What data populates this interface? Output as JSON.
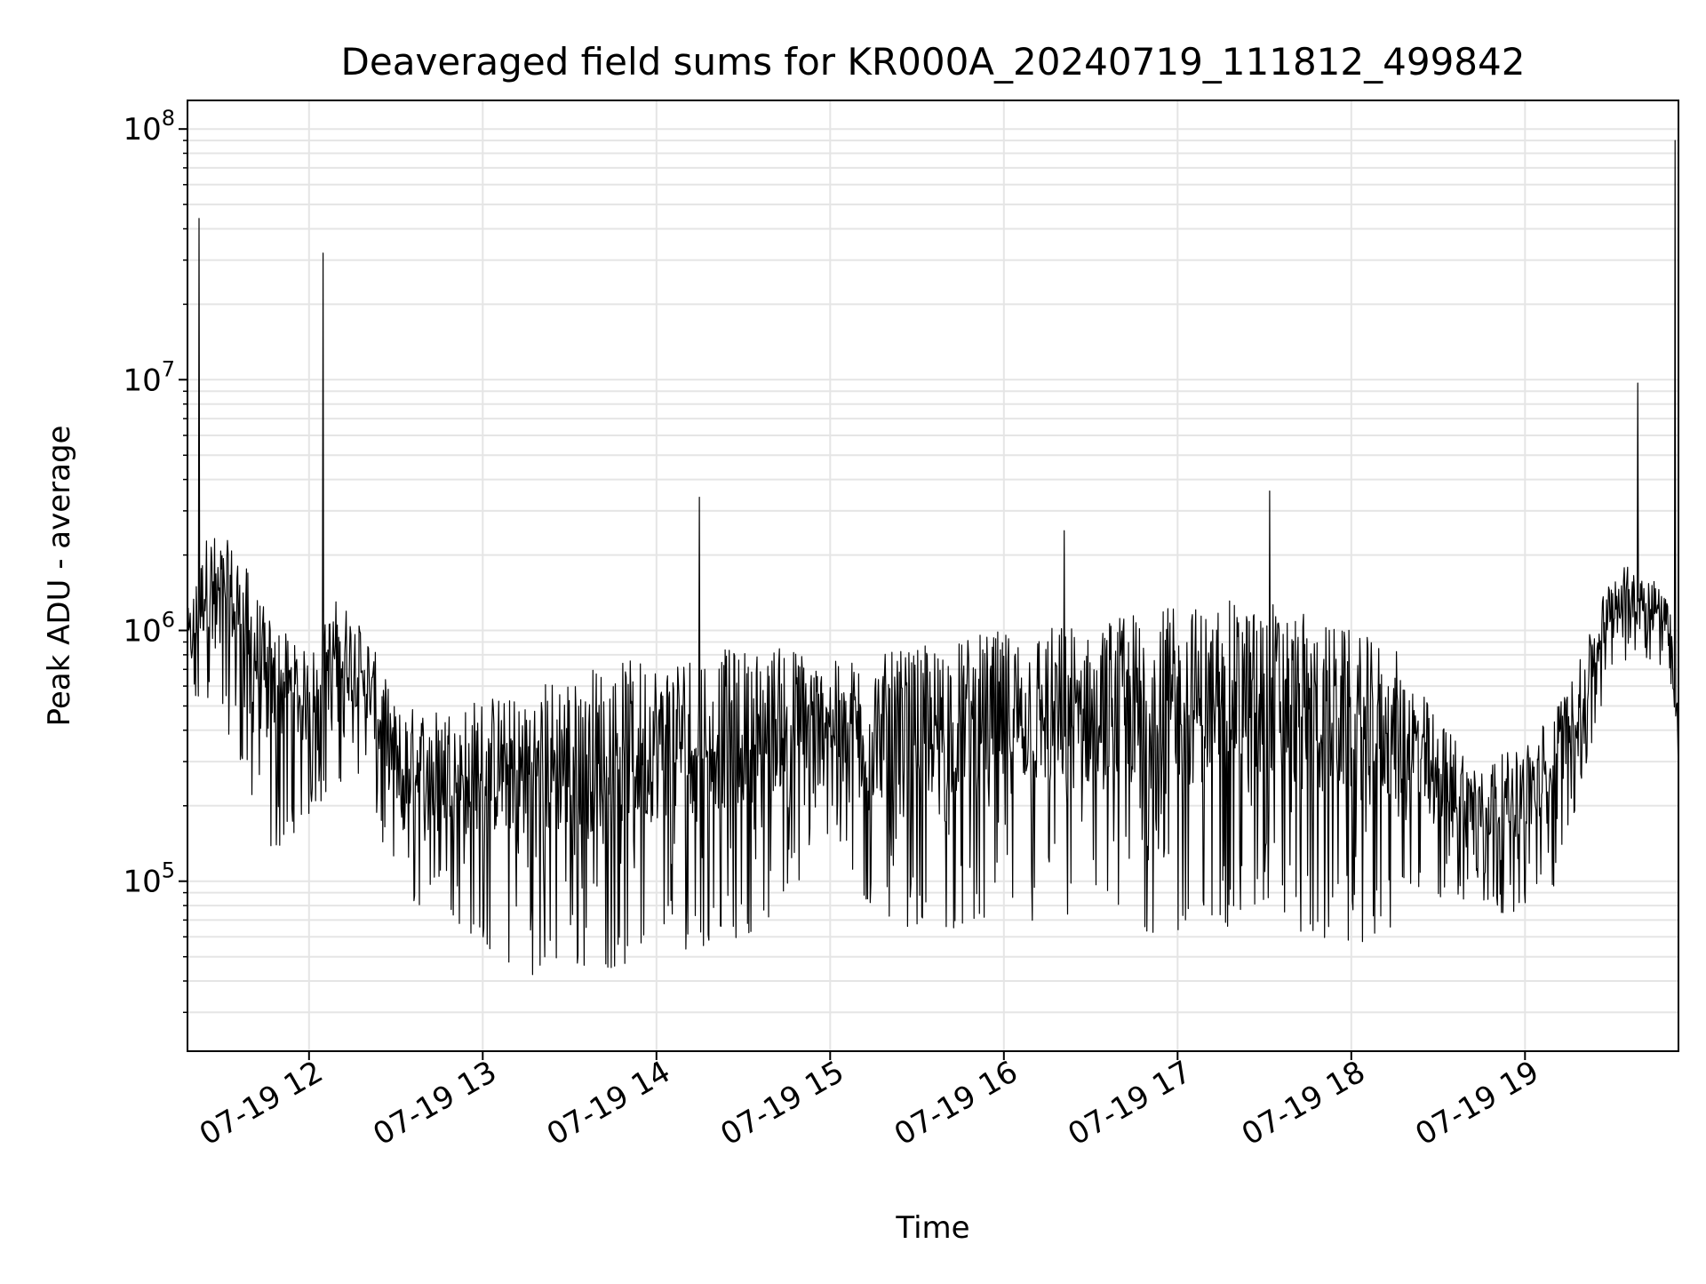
{
  "chart_data": {
    "type": "line",
    "title": "Deaveraged field sums for KR000A_20240719_111812_499842",
    "xlabel": "Time",
    "ylabel": "Peak ADU - average",
    "x_unit": "hour",
    "x_range": [
      "2024-07-19 11:18",
      "2024-07-19 19:53"
    ],
    "x_ticks": [
      {
        "value": "2024-07-19 12:00",
        "label": "07-19 12"
      },
      {
        "value": "2024-07-19 13:00",
        "label": "07-19 13"
      },
      {
        "value": "2024-07-19 14:00",
        "label": "07-19 14"
      },
      {
        "value": "2024-07-19 15:00",
        "label": "07-19 15"
      },
      {
        "value": "2024-07-19 16:00",
        "label": "07-19 16"
      },
      {
        "value": "2024-07-19 17:00",
        "label": "07-19 17"
      },
      {
        "value": "2024-07-19 18:00",
        "label": "07-19 18"
      },
      {
        "value": "2024-07-19 19:00",
        "label": "07-19 19"
      }
    ],
    "y_scale": "log",
    "y_range": [
      21000,
      130000000
    ],
    "y_ticks": [
      {
        "value": 100000,
        "base": "10",
        "exp": "5"
      },
      {
        "value": 1000000,
        "base": "10",
        "exp": "6"
      },
      {
        "value": 10000000,
        "base": "10",
        "exp": "7"
      },
      {
        "value": 100000000,
        "base": "10",
        "exp": "8"
      }
    ],
    "grid": true,
    "line_color": "#000000",
    "grid_color": "#e5e5e5",
    "series": [
      {
        "envelope": [
          {
            "x": "2024-07-19 11:18",
            "high": 1200000,
            "low": 350000
          },
          {
            "x": "2024-07-19 11:25",
            "high": 2500000,
            "low": 500000
          },
          {
            "x": "2024-07-19 11:35",
            "high": 2200000,
            "low": 350000
          },
          {
            "x": "2024-07-19 11:45",
            "high": 1200000,
            "low": 120000
          },
          {
            "x": "2024-07-19 12:00",
            "high": 800000,
            "low": 180000
          },
          {
            "x": "2024-07-19 12:10",
            "high": 1400000,
            "low": 250000
          },
          {
            "x": "2024-07-19 12:20",
            "high": 1000000,
            "low": 250000
          },
          {
            "x": "2024-07-19 12:30",
            "high": 500000,
            "low": 80000
          },
          {
            "x": "2024-07-19 12:45",
            "high": 500000,
            "low": 80000
          },
          {
            "x": "2024-07-19 13:00",
            "high": 550000,
            "low": 55000
          },
          {
            "x": "2024-07-19 13:15",
            "high": 600000,
            "low": 42000
          },
          {
            "x": "2024-07-19 13:30",
            "high": 700000,
            "low": 45000
          },
          {
            "x": "2024-07-19 13:45",
            "high": 750000,
            "low": 45000
          },
          {
            "x": "2024-07-19 14:00",
            "high": 800000,
            "low": 50000
          },
          {
            "x": "2024-07-19 14:15",
            "high": 850000,
            "low": 55000
          },
          {
            "x": "2024-07-19 14:30",
            "high": 850000,
            "low": 60000
          },
          {
            "x": "2024-07-19 14:45",
            "high": 900000,
            "low": 80000
          },
          {
            "x": "2024-07-19 15:00",
            "high": 750000,
            "low": 150000
          },
          {
            "x": "2024-07-19 15:15",
            "high": 800000,
            "low": 70000
          },
          {
            "x": "2024-07-19 15:30",
            "high": 850000,
            "low": 65000
          },
          {
            "x": "2024-07-19 15:45",
            "high": 950000,
            "low": 65000
          },
          {
            "x": "2024-07-19 16:00",
            "high": 1000000,
            "low": 65000
          },
          {
            "x": "2024-07-19 16:15",
            "high": 1050000,
            "low": 65000
          },
          {
            "x": "2024-07-19 16:30",
            "high": 1100000,
            "low": 65000
          },
          {
            "x": "2024-07-19 16:45",
            "high": 1200000,
            "low": 60000
          },
          {
            "x": "2024-07-19 17:00",
            "high": 1250000,
            "low": 60000
          },
          {
            "x": "2024-07-19 17:15",
            "high": 1300000,
            "low": 65000
          },
          {
            "x": "2024-07-19 17:30",
            "high": 1400000,
            "low": 70000
          },
          {
            "x": "2024-07-19 17:45",
            "high": 1150000,
            "low": 60000
          },
          {
            "x": "2024-07-19 18:00",
            "high": 1000000,
            "low": 55000
          },
          {
            "x": "2024-07-19 18:15",
            "high": 850000,
            "low": 65000
          },
          {
            "x": "2024-07-19 18:30",
            "high": 450000,
            "low": 85000
          },
          {
            "x": "2024-07-19 18:45",
            "high": 300000,
            "low": 75000
          },
          {
            "x": "2024-07-19 19:00",
            "high": 350000,
            "low": 75000
          },
          {
            "x": "2024-07-19 19:10",
            "high": 500000,
            "low": 95000
          },
          {
            "x": "2024-07-19 19:20",
            "high": 800000,
            "low": 250000
          },
          {
            "x": "2024-07-19 19:30",
            "high": 1800000,
            "low": 700000
          },
          {
            "x": "2024-07-19 19:40",
            "high": 1800000,
            "low": 800000
          },
          {
            "x": "2024-07-19 19:50",
            "high": 1400000,
            "low": 700000
          },
          {
            "x": "2024-07-19 19:53",
            "high": 450000,
            "low": 240000
          }
        ],
        "spikes": [
          {
            "x": "2024-07-19 11:22",
            "value": 44000000
          },
          {
            "x": "2024-07-19 12:05",
            "value": 32000000
          },
          {
            "x": "2024-07-19 14:15",
            "value": 3400000
          },
          {
            "x": "2024-07-19 16:21",
            "value": 2500000
          },
          {
            "x": "2024-07-19 17:32",
            "value": 3600000
          },
          {
            "x": "2024-07-19 19:39",
            "value": 9700000
          },
          {
            "x": "2024-07-19 19:52",
            "value": 90000000
          }
        ]
      }
    ]
  }
}
